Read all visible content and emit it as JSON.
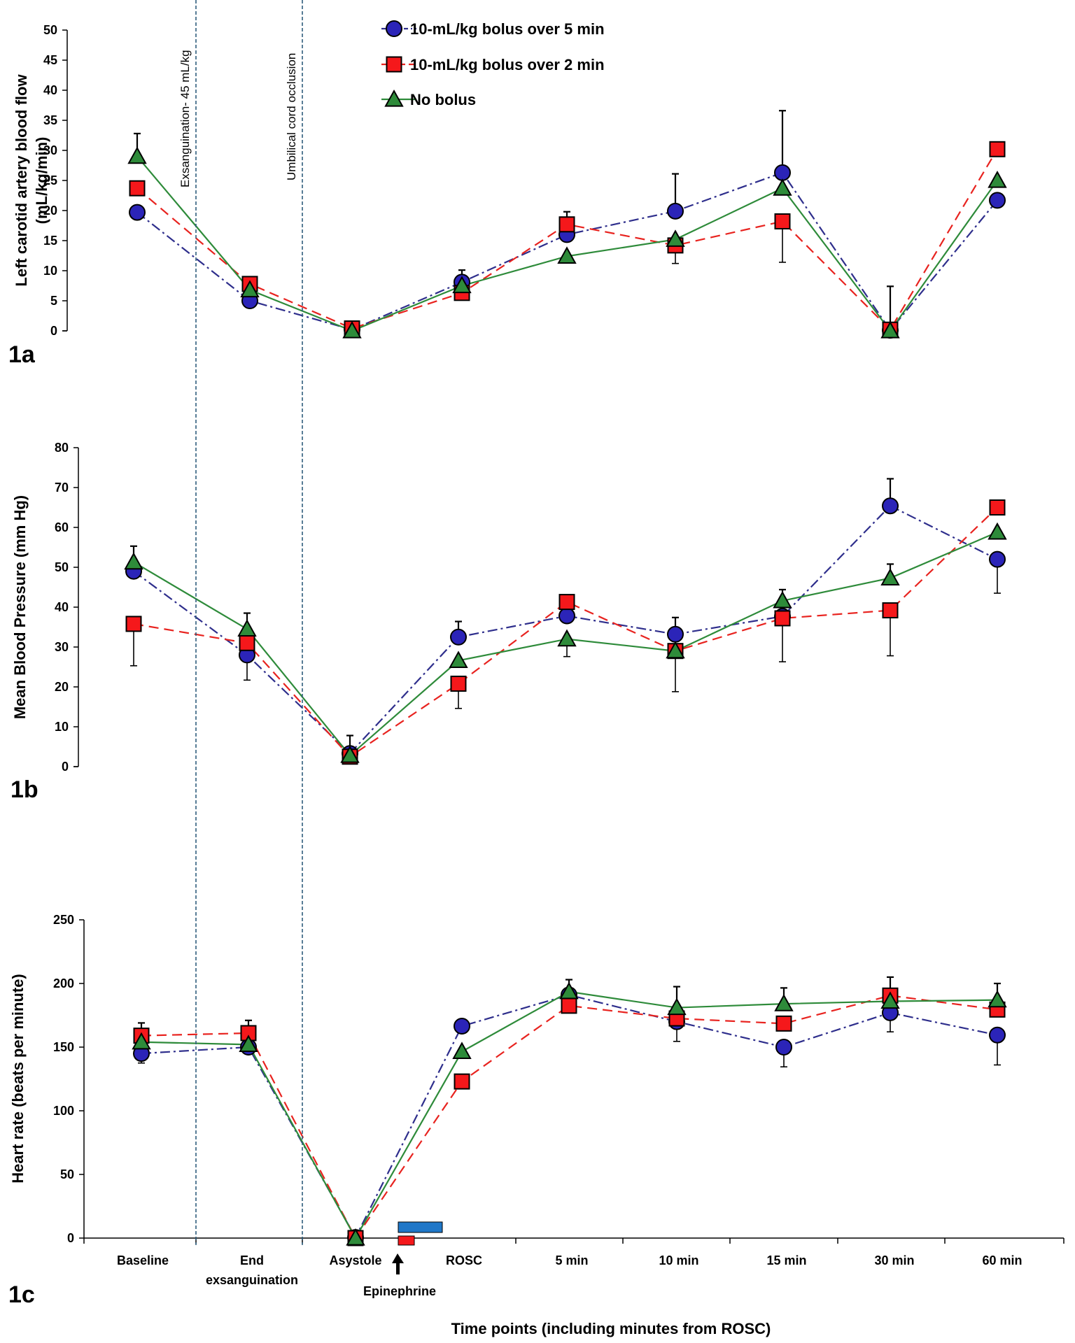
{
  "chart_data": [
    {
      "type": "line",
      "panel": "1a",
      "ylabel": [
        "Left carotid artery blood flow",
        "(mL/kg/min)"
      ],
      "ylim": [
        0,
        50
      ],
      "yticks": [
        "0",
        "5",
        "10",
        "15",
        "20",
        "25",
        "30",
        "35",
        "40",
        "45",
        "50"
      ],
      "series": [
        {
          "name": "10-mL/kg bolus over 5 min",
          "values": [
            19.7,
            5.0,
            0.2,
            8.1,
            16.0,
            19.9,
            26.3,
            0.1,
            21.7
          ],
          "err": [
            0,
            0,
            0,
            2.0,
            0,
            6.2,
            10.3,
            7.3,
            0
          ]
        },
        {
          "name": "10-mL/kg bolus over 2 min",
          "values": [
            23.7,
            7.8,
            0.4,
            6.3,
            17.7,
            14.2,
            18.2,
            0.2,
            30.2
          ],
          "err": [
            0,
            1.0,
            0,
            0,
            2.1,
            0,
            0,
            0,
            0
          ]
        },
        {
          "name": "No bolus",
          "values": [
            29.0,
            6.8,
            0.0,
            7.5,
            12.4,
            15.2,
            23.7,
            0.0,
            25.0
          ],
          "err": [
            3.8,
            0,
            0,
            0,
            0,
            0,
            0,
            0,
            0
          ]
        }
      ],
      "err_down": [
        {
          "series": 1,
          "point": 5,
          "value": 11.2
        },
        {
          "series": 1,
          "point": 6,
          "value": 11.4
        }
      ]
    },
    {
      "type": "line",
      "panel": "1b",
      "ylabel": [
        "Mean Blood Pressure (mm Hg)"
      ],
      "ylim": [
        0,
        80
      ],
      "yticks": [
        "0",
        "10",
        "20",
        "30",
        "40",
        "50",
        "60",
        "70",
        "80"
      ],
      "series": [
        {
          "name": "10-mL/kg bolus over 5 min",
          "values": [
            49.0,
            28.0,
            3.3,
            32.5,
            37.8,
            33.2,
            37.7,
            65.4,
            52.0
          ],
          "err": [
            0,
            0,
            4.5,
            3.9,
            0,
            4.2,
            0,
            6.8,
            0
          ]
        },
        {
          "name": "10-mL/kg bolus over 2 min",
          "values": [
            35.8,
            31.0,
            2.5,
            20.8,
            41.3,
            29.0,
            37.2,
            39.2,
            65.0
          ],
          "err": [
            0,
            0,
            0,
            0,
            0,
            0,
            0,
            0,
            0
          ]
        },
        {
          "name": "No bolus",
          "values": [
            51.3,
            34.5,
            2.8,
            26.6,
            32.0,
            29.0,
            41.6,
            47.3,
            58.8
          ],
          "err": [
            4.0,
            4.0,
            0,
            0,
            0,
            0,
            2.8,
            3.5,
            0
          ]
        }
      ],
      "err_down": [
        {
          "series": 1,
          "point": 0,
          "value": 25.3
        },
        {
          "series": 0,
          "point": 1,
          "value": 21.7
        },
        {
          "series": 1,
          "point": 3,
          "value": 14.6
        },
        {
          "series": 2,
          "point": 4,
          "value": 27.6
        },
        {
          "series": 2,
          "point": 5,
          "value": 18.8
        },
        {
          "series": 1,
          "point": 6,
          "value": 26.3
        },
        {
          "series": 1,
          "point": 7,
          "value": 27.8
        },
        {
          "series": 0,
          "point": 8,
          "value": 43.5
        }
      ]
    },
    {
      "type": "line",
      "panel": "1c",
      "ylabel": [
        "Heart rate (beats per minute)"
      ],
      "ylim": [
        0,
        250
      ],
      "yticks": [
        "0",
        "50",
        "100",
        "150",
        "200",
        "250"
      ],
      "categories": [
        "Baseline",
        "End exsanguination",
        "Asystole",
        "ROSC",
        "5 min",
        "10 min",
        "15 min",
        "30 min",
        "60 min"
      ],
      "xlabel": "Time points (including minutes from  ROSC)",
      "series": [
        {
          "name": "10-mL/kg bolus over 5 min",
          "values": [
            145.0,
            150.0,
            0.5,
            166.5,
            191.0,
            170.0,
            150.0,
            177.0,
            159.5
          ],
          "err": [
            0,
            0,
            0,
            0,
            0,
            0,
            0,
            0,
            0
          ]
        },
        {
          "name": "10-mL/kg bolus over 2 min",
          "values": [
            159.0,
            161.0,
            0.0,
            123.0,
            182.5,
            172.5,
            168.5,
            190.5,
            179.5
          ],
          "err": [
            10.0,
            10.0,
            0,
            0,
            0,
            0,
            0,
            14.5,
            0
          ]
        },
        {
          "name": "No bolus",
          "values": [
            154.0,
            152.0,
            0.0,
            146.5,
            193.5,
            181.0,
            184.0,
            186.0,
            187.0
          ],
          "err": [
            0,
            0,
            0,
            0,
            9.5,
            16.5,
            12.5,
            0,
            13.0
          ]
        }
      ],
      "err_down": [
        {
          "series": 0,
          "point": 0,
          "value": 137.5
        },
        {
          "series": 0,
          "point": 5,
          "value": 154.5
        },
        {
          "series": 0,
          "point": 6,
          "value": 134.5
        },
        {
          "series": 0,
          "point": 7,
          "value": 162.0
        },
        {
          "series": 0,
          "point": 8,
          "value": 136.0
        }
      ]
    }
  ],
  "legend": [
    {
      "name": "10-mL/kg bolus over 5 min",
      "marker": "circle"
    },
    {
      "name": "10-mL/kg bolus over 2 min",
      "marker": "square"
    },
    {
      "name": "No bolus",
      "marker": "triangle"
    }
  ],
  "styles": [
    {
      "line": "#2e2e8c",
      "fill": "#2b24b8",
      "dash": "14 5 3 5"
    },
    {
      "line": "#e8231f",
      "fill": "#f5181b",
      "dash": "14 8"
    },
    {
      "line": "#2e8b3a",
      "fill": "#2e8b3a",
      "dash": ""
    }
  ],
  "annotations": {
    "vline1": "Exsanguination- 45 mL/kg",
    "vline2": "Umbilical cord occlusion",
    "epinephrine": "Epinephrine",
    "bolus_bar_colors": {
      "five_min": "#1f77c8",
      "two_min": "#f5181b"
    }
  },
  "panel_labels": [
    "1a",
    "1b",
    "1c"
  ]
}
